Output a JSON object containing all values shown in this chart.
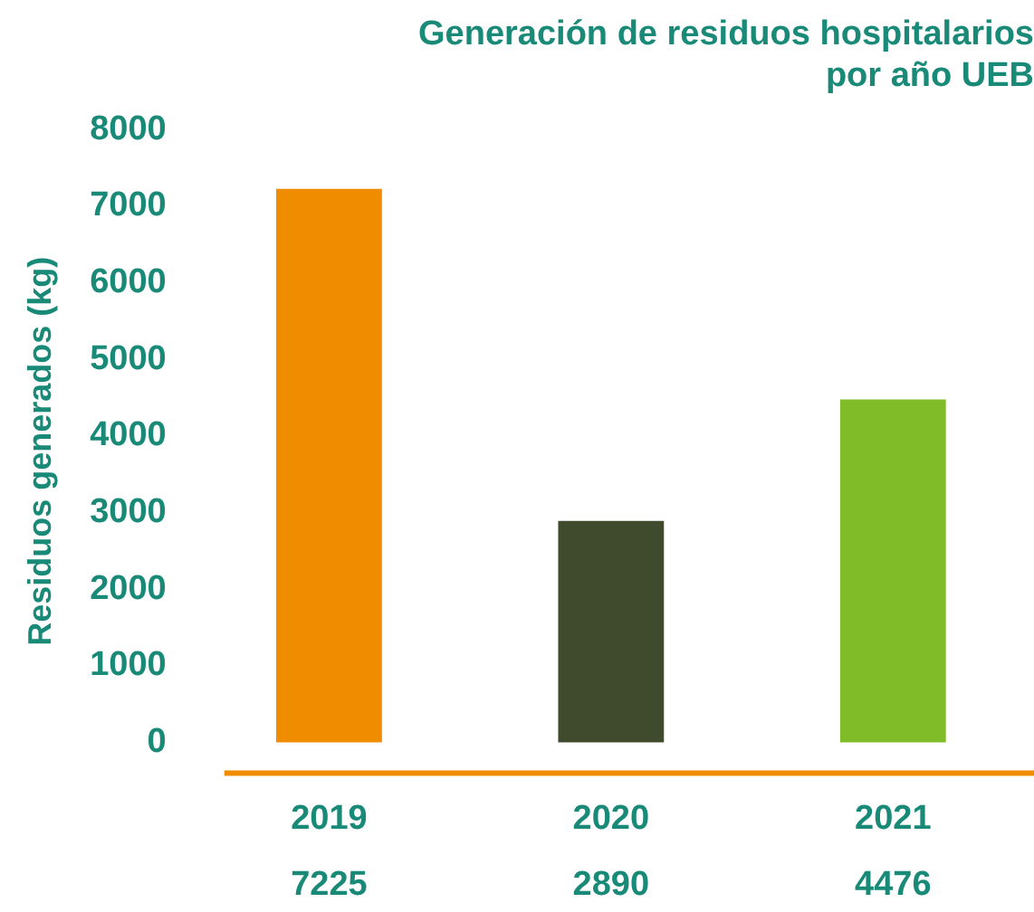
{
  "chart_data": {
    "type": "bar",
    "title": "Generación de residuos hospitalarios\npor año UEB",
    "ylabel": "Residuos generados (kg)",
    "categories": [
      "2019",
      "2020",
      "2021"
    ],
    "values": [
      7225,
      2890,
      4476
    ],
    "colors": [
      "#f08c00",
      "#404a2c",
      "#80bb28"
    ],
    "ylim": [
      -400,
      8000
    ],
    "yticks": [
      0,
      1000,
      2000,
      3000,
      4000,
      5000,
      6000,
      7000,
      8000
    ],
    "data_labels": true,
    "grid": false,
    "legend": false
  }
}
